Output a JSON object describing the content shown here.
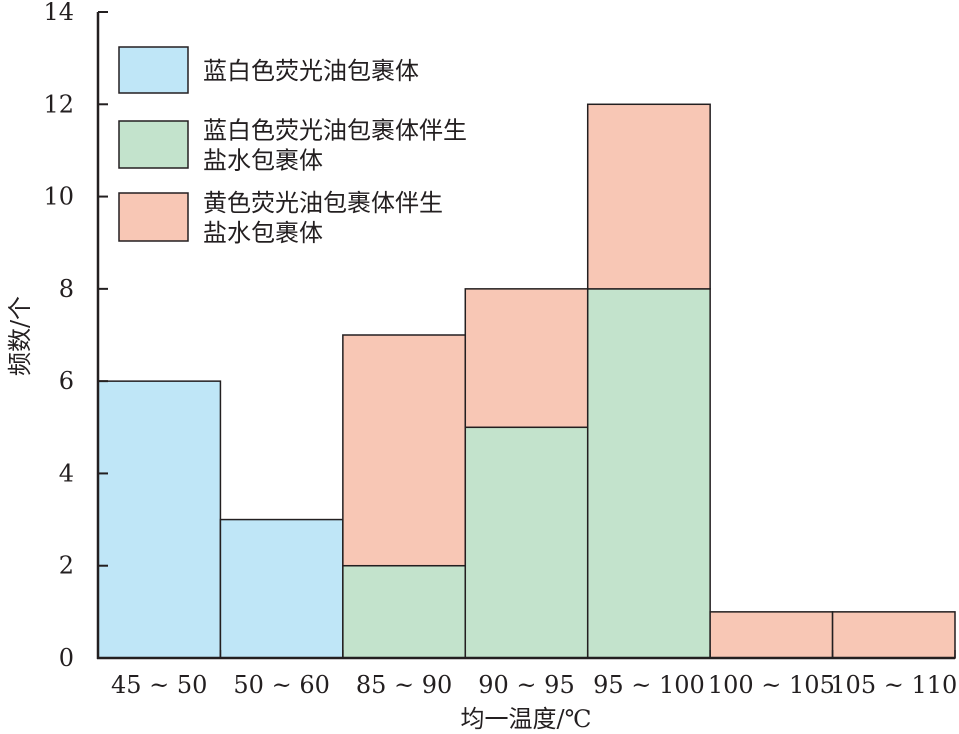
{
  "chart_data": {
    "type": "bar",
    "stacked": true,
    "categories": [
      "45 ~ 50",
      "50 ~ 60",
      "85 ~ 90",
      "90 ~ 95",
      "95 ~ 100",
      "100 ~ 105",
      "105 ~ 110"
    ],
    "series": [
      {
        "name": "蓝白色荧光油包裹体",
        "legend_lines": [
          "蓝白色荧光油包裹体"
        ],
        "color": "#bfe6f7",
        "values": [
          6,
          3,
          0,
          0,
          0,
          0,
          0
        ]
      },
      {
        "name": "蓝白色荧光油包裹体伴生盐水包裹体",
        "legend_lines": [
          "蓝白色荧光油包裹体伴生",
          "盐水包裹体"
        ],
        "color": "#c3e3cc",
        "values": [
          0,
          0,
          2,
          5,
          8,
          0,
          0
        ]
      },
      {
        "name": "黄色荧光油包裹体伴生盐水包裹体",
        "legend_lines": [
          "黄色荧光油包裹体伴生",
          "盐水包裹体"
        ],
        "color": "#f8c7b5",
        "values": [
          0,
          0,
          5,
          3,
          4,
          1,
          1
        ]
      }
    ],
    "xlabel": "均一温度/℃",
    "ylabel": "频数/个",
    "ylim": [
      0,
      14
    ],
    "yticks": [
      0,
      2,
      4,
      6,
      8,
      10,
      12,
      14
    ],
    "grid": false,
    "legend_position": "top-left"
  }
}
